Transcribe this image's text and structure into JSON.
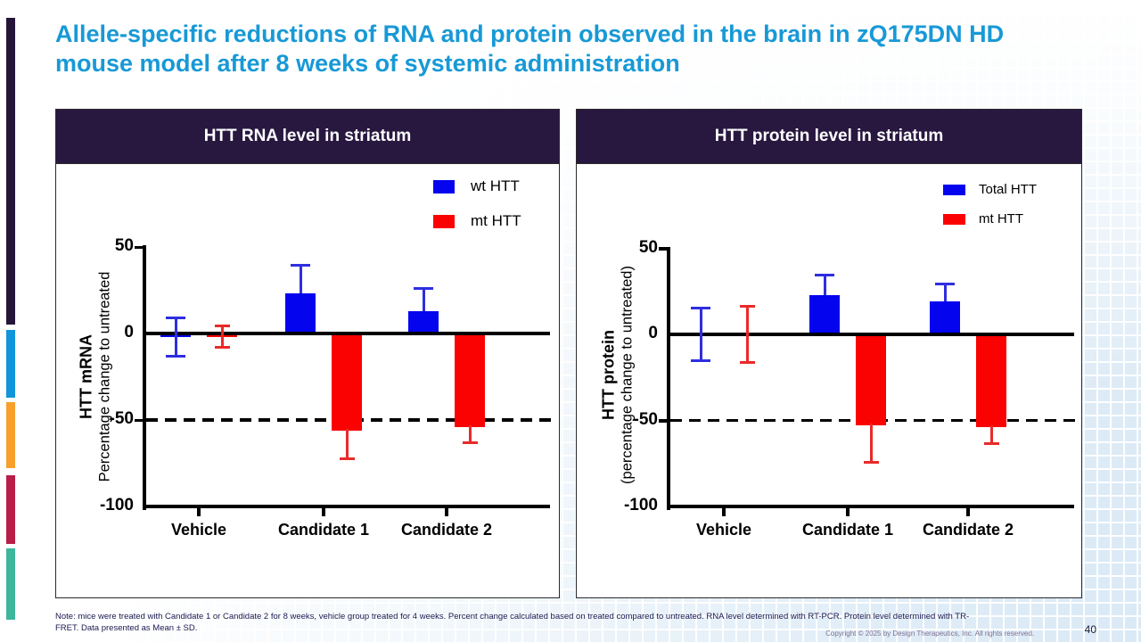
{
  "slide": {
    "title": "Allele-specific reductions of RNA and protein observed in the brain in zQ175DN HD mouse model after 8 weeks of systemic administration",
    "note_lines": [
      "Note:  mice were treated with Candidate 1 or Candidate 2 for 8 weeks, vehicle group treated for 4 weeks. Percent change calculated based on treated compared to untreated. RNA level determined with RT-PCR. Protein level determined with TR-",
      "FRET. Data presented as Mean ± SD."
    ],
    "copyright": "Copyright © 2025 by Design Therapeutics, Inc. All rights reserved.",
    "page_number": "40"
  },
  "colors": {
    "title_text": "#1899d6",
    "panel_header_bg": "#281840",
    "wt_bar": "#0404ee",
    "mt_bar": "#fa0202",
    "wt_error": "#2e2ee0",
    "mt_error": "#ea2a2a",
    "sidebar": [
      "#241539",
      "#1095da",
      "#f7a02c",
      "#b81e47",
      "#3eb69d"
    ]
  },
  "chart_data": [
    {
      "type": "bar",
      "title": "HTT RNA level in striatum",
      "ylabel_line1": "HTT mRNA",
      "ylabel_line2": "Percentage change to untreated",
      "categories": [
        "Vehicle",
        "Candidate 1",
        "Candidate 2"
      ],
      "series": [
        {
          "name": "wt HTT",
          "color": "#0404ee",
          "error_color": "#2e2ee0",
          "values": [
            -2,
            23,
            13
          ],
          "sd": [
            12,
            17,
            14
          ]
        },
        {
          "name": "mt HTT",
          "color": "#fa0202",
          "error_color": "#ea2a2a",
          "values": [
            -2,
            -56,
            -54
          ],
          "sd": [
            7,
            17,
            10
          ]
        }
      ],
      "yticks": [
        50,
        0,
        -50,
        -100
      ],
      "ylim": [
        -100,
        50
      ],
      "dashed_line_y": -50,
      "legend_position": "top-right",
      "error_note": "Mean ± SD"
    },
    {
      "type": "bar",
      "title": "HTT protein level in striatum",
      "ylabel_line1": "HTT protein",
      "ylabel_line2": "(percentage change to untreated)",
      "categories": [
        "Vehicle",
        "Candidate 1",
        "Candidate 2"
      ],
      "series": [
        {
          "name": "Total HTT",
          "color": "#0404ee",
          "error_color": "#2e2ee0",
          "values": [
            0,
            23,
            19
          ],
          "sd": [
            16,
            12,
            11
          ]
        },
        {
          "name": "mt HTT",
          "color": "#fa0202",
          "error_color": "#ea2a2a",
          "values": [
            0,
            -53,
            -54
          ],
          "sd": [
            17,
            22,
            10
          ]
        }
      ],
      "yticks": [
        50,
        0,
        -50,
        -100
      ],
      "ylim": [
        -100,
        50
      ],
      "dashed_line_y": -50,
      "legend_position": "top-right",
      "error_note": "Mean ± SD"
    }
  ]
}
